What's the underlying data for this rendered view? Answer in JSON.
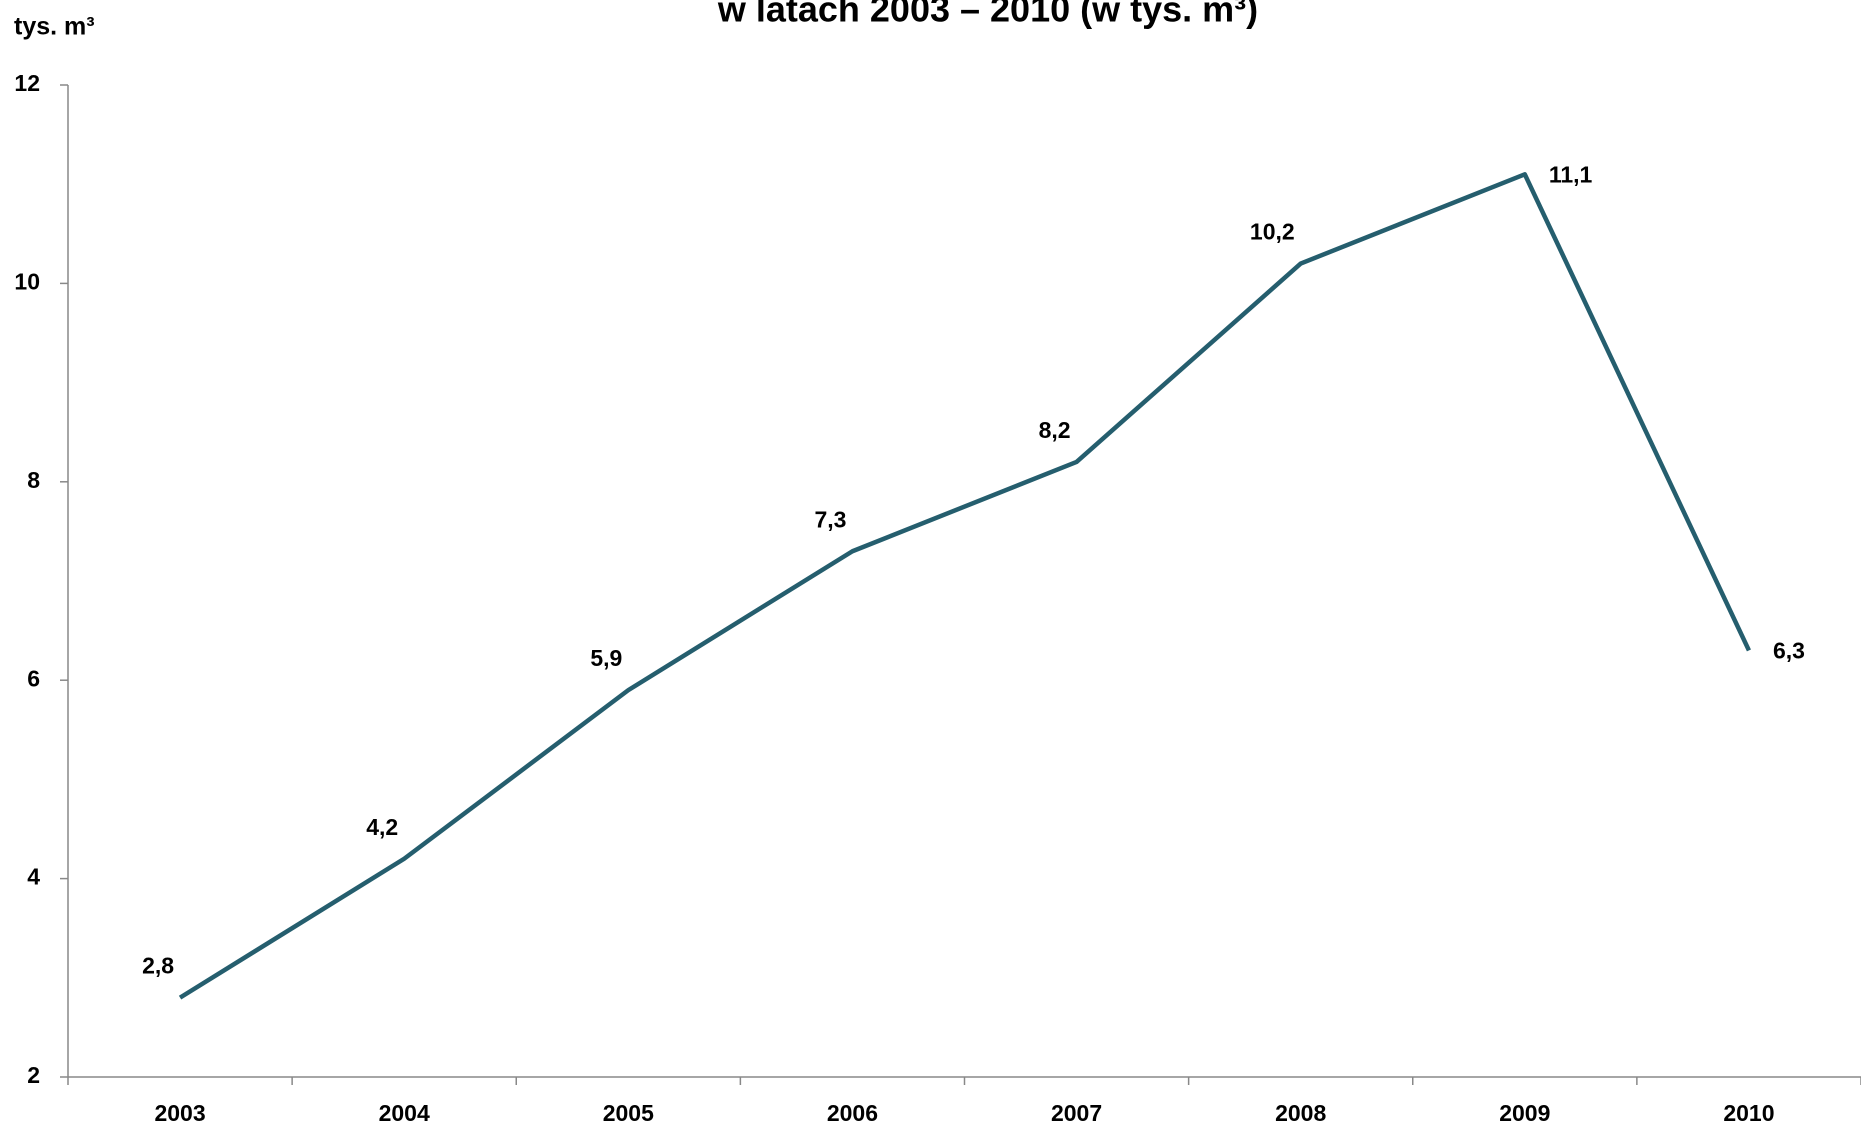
{
  "chart_data": {
    "type": "line",
    "title": "w latach 2003 – 2010 (w tys. m³)",
    "y_label": "tys. m³",
    "categories": [
      "2003",
      "2004",
      "2005",
      "2006",
      "2007",
      "2008",
      "2009",
      "2010"
    ],
    "series": [
      {
        "name": null,
        "color": "#255e6e",
        "values": [
          2.8,
          4.2,
          5.9,
          7.3,
          8.2,
          10.2,
          11.1,
          6.3
        ],
        "value_labels": [
          "2,8",
          "4,2",
          "5,9",
          "7,3",
          "8,2",
          "10,2",
          "11,1",
          "6,3"
        ]
      }
    ],
    "ylim": [
      2,
      12
    ],
    "yticks": [
      2,
      4,
      6,
      8,
      10,
      12
    ],
    "grid": false
  }
}
